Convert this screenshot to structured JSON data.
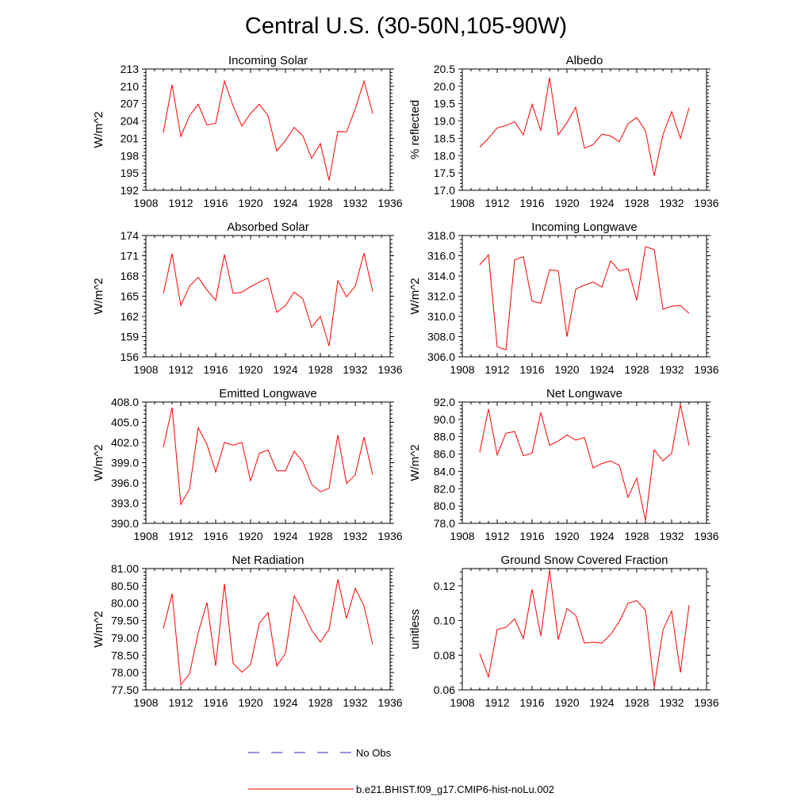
{
  "title": "Central U.S. (30-50N,105-90W)",
  "legend": [
    {
      "label": "No Obs",
      "color": "#2a2ab0",
      "dash": true
    },
    {
      "label": "b.e21.BHIST.f09_g17.CMIP6-hist-noLu.002",
      "color": "#ff0000",
      "dash": false
    }
  ],
  "line_color": "#ff0000",
  "chart_data": [
    {
      "type": "line",
      "title": "Incoming Solar",
      "ylabel": "W/m^2",
      "xlim": [
        1908,
        1936
      ],
      "xticks": [
        "1908",
        "1912",
        "1916",
        "1920",
        "1924",
        "1928",
        "1932",
        "1936"
      ],
      "ylim": [
        192,
        213
      ],
      "yticks": [
        "192",
        "195",
        "198",
        "201",
        "204",
        "207",
        "210",
        "213"
      ],
      "series": [
        {
          "x": [
            1910,
            1911,
            1912,
            1913,
            1914,
            1915,
            1916,
            1917,
            1918,
            1919,
            1920,
            1921,
            1922,
            1923,
            1924,
            1925,
            1926,
            1927,
            1928,
            1929,
            1930,
            1931,
            1932,
            1933,
            1934
          ],
          "values": [
            202.0,
            210.3,
            201.3,
            204.9,
            206.9,
            203.3,
            203.6,
            210.9,
            206.6,
            203.1,
            205.3,
            206.9,
            204.9,
            198.8,
            200.6,
            202.9,
            201.4,
            197.5,
            200.1,
            193.7,
            202.2,
            202.1,
            206.1,
            210.9,
            205.3
          ]
        }
      ]
    },
    {
      "type": "line",
      "title": "Albedo",
      "ylabel": "% reflected",
      "xlim": [
        1908,
        1936
      ],
      "xticks": [
        "1908",
        "1912",
        "1916",
        "1920",
        "1924",
        "1928",
        "1932",
        "1936"
      ],
      "ylim": [
        17.0,
        20.5
      ],
      "yticks": [
        "17.0",
        "17.5",
        "18.0",
        "18.5",
        "19.0",
        "19.5",
        "20.0",
        "20.5"
      ],
      "series": [
        {
          "x": [
            1910,
            1911,
            1912,
            1913,
            1914,
            1915,
            1916,
            1917,
            1918,
            1919,
            1920,
            1921,
            1922,
            1923,
            1924,
            1925,
            1926,
            1927,
            1928,
            1929,
            1930,
            1931,
            1932,
            1933,
            1934
          ],
          "values": [
            18.25,
            18.5,
            18.8,
            18.87,
            18.98,
            18.6,
            19.48,
            18.72,
            20.25,
            18.6,
            18.95,
            19.4,
            18.22,
            18.32,
            18.62,
            18.57,
            18.4,
            18.92,
            19.1,
            18.72,
            17.42,
            18.6,
            19.27,
            18.5,
            19.38
          ]
        }
      ]
    },
    {
      "type": "line",
      "title": "Absorbed Solar",
      "ylabel": "W/m^2",
      "xlim": [
        1908,
        1936
      ],
      "xticks": [
        "1908",
        "1912",
        "1916",
        "1920",
        "1924",
        "1928",
        "1932",
        "1936"
      ],
      "ylim": [
        156,
        174
      ],
      "yticks": [
        "156",
        "159",
        "162",
        "165",
        "168",
        "171",
        "174"
      ],
      "series": [
        {
          "x": [
            1910,
            1911,
            1912,
            1913,
            1914,
            1915,
            1916,
            1917,
            1918,
            1919,
            1920,
            1921,
            1922,
            1923,
            1924,
            1925,
            1926,
            1927,
            1928,
            1929,
            1930,
            1931,
            1932,
            1933,
            1934
          ],
          "values": [
            165.4,
            171.3,
            163.6,
            166.5,
            167.8,
            165.9,
            164.4,
            171.2,
            165.4,
            165.6,
            166.4,
            167.1,
            167.7,
            162.6,
            163.6,
            165.6,
            164.6,
            160.4,
            162.0,
            157.6,
            167.3,
            164.9,
            166.5,
            171.4,
            165.7
          ]
        }
      ]
    },
    {
      "type": "line",
      "title": "Incoming Longwave",
      "ylabel": "W/m^2",
      "xlim": [
        1908,
        1936
      ],
      "xticks": [
        "1908",
        "1912",
        "1916",
        "1920",
        "1924",
        "1928",
        "1932",
        "1936"
      ],
      "ylim": [
        306.0,
        318.0
      ],
      "yticks": [
        "306.0",
        "308.0",
        "310.0",
        "312.0",
        "314.0",
        "316.0",
        "318.0"
      ],
      "series": [
        {
          "x": [
            1910,
            1911,
            1912,
            1913,
            1914,
            1915,
            1916,
            1917,
            1918,
            1919,
            1920,
            1921,
            1922,
            1923,
            1924,
            1925,
            1926,
            1927,
            1928,
            1929,
            1930,
            1931,
            1932,
            1933,
            1934
          ],
          "values": [
            315.1,
            316.1,
            307.0,
            306.7,
            315.6,
            315.9,
            311.5,
            311.3,
            314.6,
            314.5,
            308.0,
            312.7,
            313.1,
            313.4,
            312.9,
            315.5,
            314.5,
            314.7,
            311.6,
            316.9,
            316.6,
            310.7,
            311.0,
            311.1,
            310.3
          ]
        }
      ]
    },
    {
      "type": "line",
      "title": "Emitted Longwave",
      "ylabel": "W/m^2",
      "xlim": [
        1908,
        1936
      ],
      "xticks": [
        "1908",
        "1912",
        "1916",
        "1920",
        "1924",
        "1928",
        "1932",
        "1936"
      ],
      "ylim": [
        390.0,
        408.0
      ],
      "yticks": [
        "390.0",
        "393.0",
        "396.0",
        "399.0",
        "402.0",
        "405.0",
        "408.0"
      ],
      "series": [
        {
          "x": [
            1910,
            1911,
            1912,
            1913,
            1914,
            1915,
            1916,
            1917,
            1918,
            1919,
            1920,
            1921,
            1922,
            1923,
            1924,
            1925,
            1926,
            1927,
            1928,
            1929,
            1930,
            1931,
            1932,
            1933,
            1934
          ],
          "values": [
            401.3,
            407.2,
            392.8,
            395.1,
            404.2,
            401.7,
            397.6,
            402.0,
            401.6,
            402.0,
            396.3,
            400.4,
            400.9,
            397.8,
            397.8,
            400.7,
            399.1,
            395.8,
            394.7,
            395.2,
            403.1,
            395.9,
            397.2,
            402.8,
            397.2
          ]
        }
      ]
    },
    {
      "type": "line",
      "title": "Net Longwave",
      "ylabel": "W/m^2",
      "xlim": [
        1908,
        1936
      ],
      "xticks": [
        "1908",
        "1912",
        "1916",
        "1920",
        "1924",
        "1928",
        "1932",
        "1936"
      ],
      "ylim": [
        78.0,
        92.0
      ],
      "yticks": [
        "78.0",
        "80.0",
        "82.0",
        "84.0",
        "86.0",
        "88.0",
        "90.0",
        "92.0"
      ],
      "series": [
        {
          "x": [
            1910,
            1911,
            1912,
            1913,
            1914,
            1915,
            1916,
            1917,
            1918,
            1919,
            1920,
            1921,
            1922,
            1923,
            1924,
            1925,
            1926,
            1927,
            1928,
            1929,
            1930,
            1931,
            1932,
            1933,
            1934
          ],
          "values": [
            86.2,
            91.2,
            85.9,
            88.4,
            88.6,
            85.8,
            86.1,
            90.8,
            87.0,
            87.5,
            88.2,
            87.6,
            87.9,
            84.4,
            84.9,
            85.2,
            84.7,
            81.0,
            83.2,
            78.3,
            86.5,
            85.2,
            86.1,
            91.7,
            87.0
          ]
        }
      ]
    },
    {
      "type": "line",
      "title": "Net Radiation",
      "ylabel": "W/m^2",
      "xlim": [
        1908,
        1936
      ],
      "xticks": [
        "1908",
        "1912",
        "1916",
        "1920",
        "1924",
        "1928",
        "1932",
        "1936"
      ],
      "ylim": [
        77.5,
        81.0
      ],
      "yticks": [
        "77.50",
        "78.00",
        "78.50",
        "79.00",
        "79.50",
        "80.00",
        "80.50",
        "81.00"
      ],
      "series": [
        {
          "x": [
            1910,
            1911,
            1912,
            1913,
            1914,
            1915,
            1916,
            1917,
            1918,
            1919,
            1920,
            1921,
            1922,
            1923,
            1924,
            1925,
            1926,
            1927,
            1928,
            1929,
            1930,
            1931,
            1932,
            1933,
            1934
          ],
          "values": [
            79.27,
            80.28,
            77.65,
            77.96,
            79.15,
            80.02,
            78.19,
            80.56,
            78.27,
            78.01,
            78.23,
            79.42,
            79.73,
            78.19,
            78.55,
            80.21,
            79.76,
            79.22,
            78.88,
            79.25,
            80.69,
            79.56,
            80.43,
            79.93,
            78.81
          ]
        }
      ]
    },
    {
      "type": "line",
      "title": "Ground Snow Covered Fraction",
      "ylabel": "unitless",
      "xlim": [
        1908,
        1936
      ],
      "xticks": [
        "1908",
        "1912",
        "1916",
        "1920",
        "1924",
        "1928",
        "1932",
        "1936"
      ],
      "ylim": [
        0.06,
        0.13
      ],
      "yticks": [
        "0.06",
        "0.08",
        "0.10",
        "0.12"
      ],
      "series": [
        {
          "x": [
            1910,
            1911,
            1912,
            1913,
            1914,
            1915,
            1916,
            1917,
            1918,
            1919,
            1920,
            1921,
            1922,
            1923,
            1924,
            1925,
            1926,
            1927,
            1928,
            1929,
            1930,
            1931,
            1932,
            1933,
            1934
          ],
          "values": [
            0.081,
            0.0675,
            0.095,
            0.096,
            0.101,
            0.0895,
            0.118,
            0.091,
            0.129,
            0.089,
            0.107,
            0.103,
            0.087,
            0.0875,
            0.087,
            0.092,
            0.0995,
            0.11,
            0.1115,
            0.106,
            0.0615,
            0.0945,
            0.1055,
            0.07,
            0.109
          ]
        }
      ]
    }
  ]
}
